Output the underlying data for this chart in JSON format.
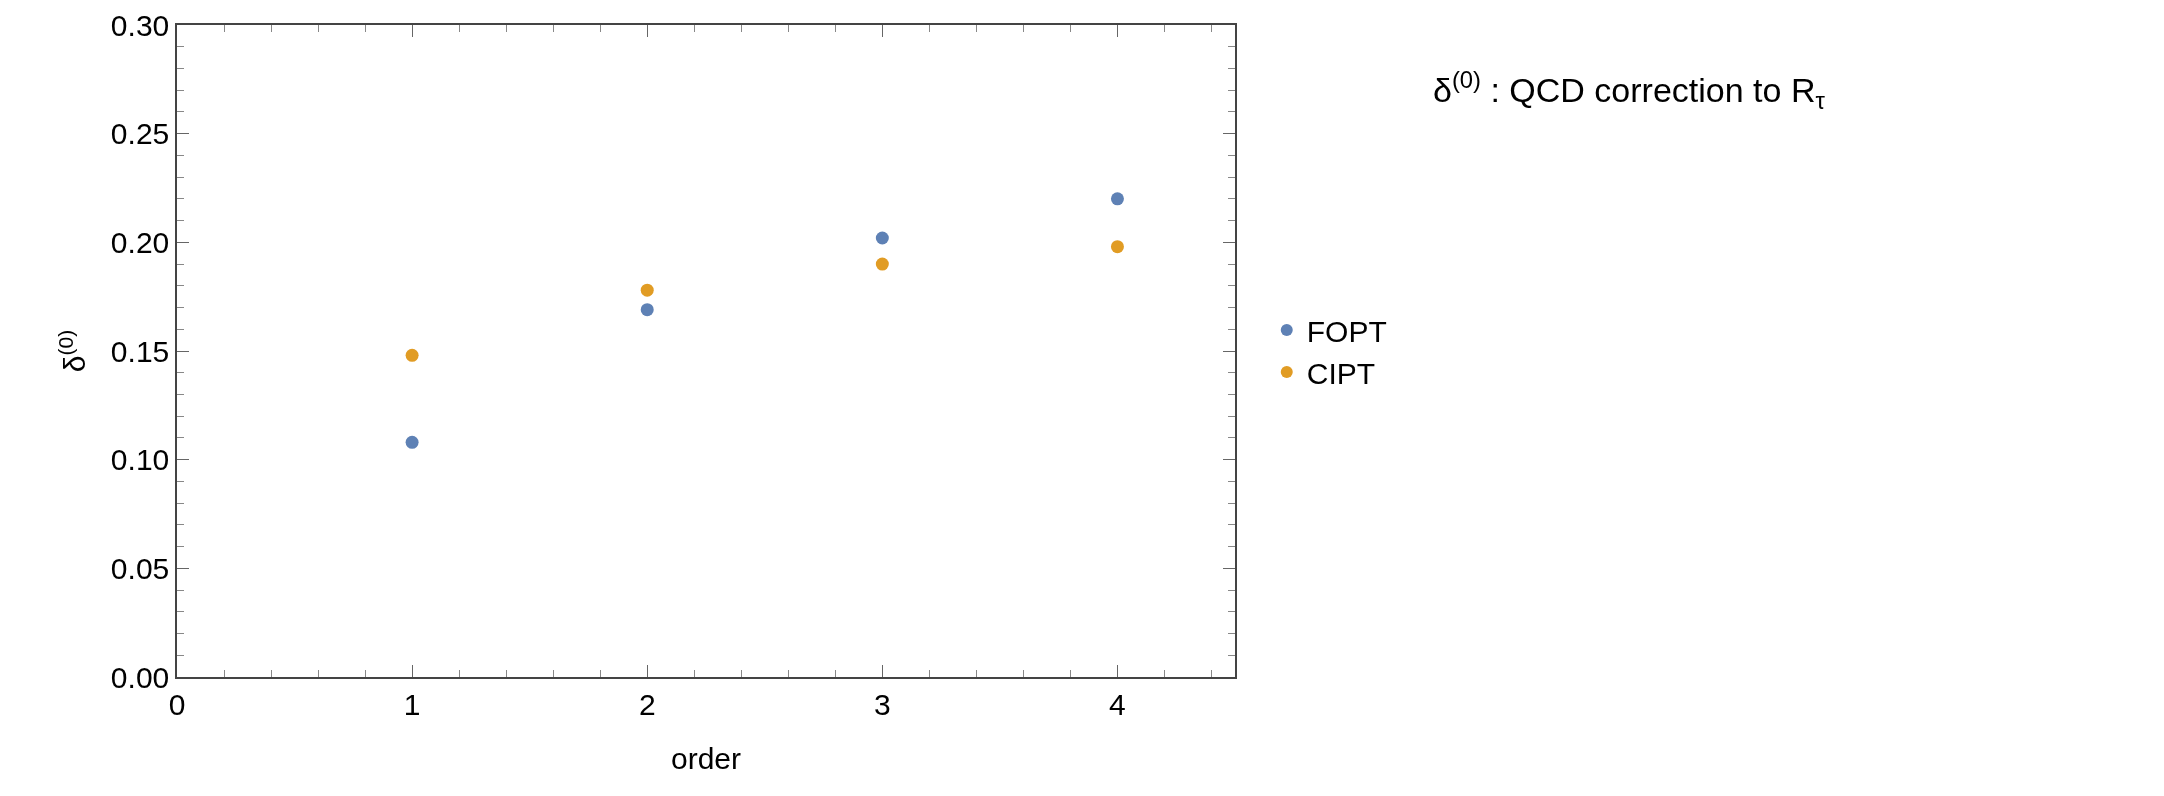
{
  "chart_data": {
    "type": "scatter",
    "xlabel": "order",
    "ylabel": "δ$^{(0)}$",
    "annotations": [
      "δ$^{(0)}$ : QCD correction to R$_{τ}$"
    ],
    "x": [
      1,
      2,
      3,
      4
    ],
    "series": [
      {
        "name": "FOPT",
        "color": "#5e81b5",
        "values": [
          0.108,
          0.169,
          0.202,
          0.22
        ]
      },
      {
        "name": "CIPT",
        "color": "#e19c24",
        "values": [
          0.148,
          0.178,
          0.19,
          0.198
        ]
      }
    ],
    "xlim": [
      0,
      4.5
    ],
    "xticks": [
      0,
      1,
      2,
      3,
      4
    ],
    "ylim": [
      0,
      0.3
    ],
    "yticks": [
      {
        "value": 0,
        "label": "0.00"
      },
      {
        "value": 0.05,
        "label": "0.05"
      },
      {
        "value": 0.1,
        "label": "0.10"
      },
      {
        "value": 0.15,
        "label": "0.15"
      },
      {
        "value": 0.2,
        "label": "0.20"
      },
      {
        "value": 0.25,
        "label": "0.25"
      },
      {
        "value": 0.3,
        "label": "0.30"
      }
    ],
    "grid": false,
    "legend": "right",
    "marker": "circle"
  }
}
